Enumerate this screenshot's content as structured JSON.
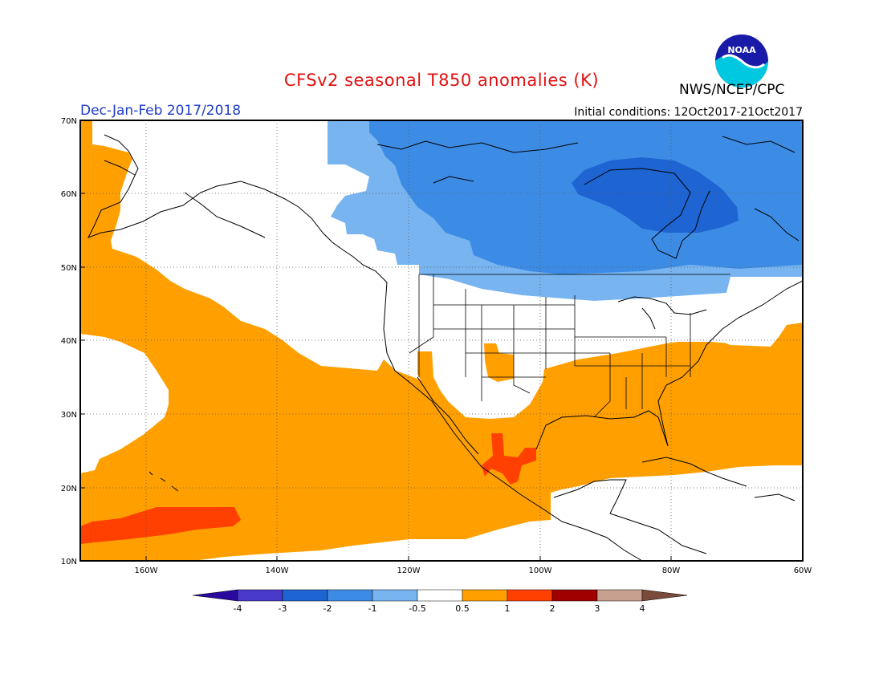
{
  "title": "CFSv2 seasonal T850 anomalies (K)",
  "agency": "NWS/NCEP/CPC",
  "logo_text": "NOAA",
  "period": "Dec-Jan-Feb 2017/2018",
  "initial_conditions": "Initial conditions: 12Oct2017-21Oct2017",
  "lat_labels": [
    "70N",
    "60N",
    "50N",
    "40N",
    "30N",
    "20N",
    "10N"
  ],
  "lon_labels": [
    "160W",
    "140W",
    "120W",
    "100W",
    "80W",
    "60W"
  ],
  "colorbar": {
    "labels": [
      "-4",
      "-3",
      "-2",
      "-1",
      "-0.5",
      "0.5",
      "1",
      "2",
      "3",
      "4"
    ],
    "colors": [
      "#2a0a9e",
      "#4a3acc",
      "#1e64d2",
      "#3c8ce6",
      "#78b4f0",
      "#ffffff",
      "#ffa000",
      "#ff4000",
      "#a00000",
      "#c8a090",
      "#7a4a3a"
    ]
  },
  "colors": {
    "strong_cold": "#1e64d2",
    "cold": "#3c8ce6",
    "light_cold": "#78b4f0",
    "warm": "#ffa000",
    "strong_warm": "#ff4000"
  }
}
